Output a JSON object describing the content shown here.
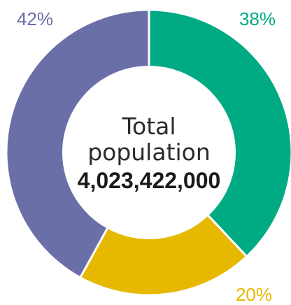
{
  "chart_data": {
    "type": "pie",
    "donut": true,
    "categories": [
      "",
      "",
      ""
    ],
    "values": [
      38,
      20,
      42
    ],
    "value_labels": [
      "38%",
      "20%",
      "42%"
    ],
    "colors": [
      "#00ab84",
      "#e6b800",
      "#6a6fa8"
    ],
    "center": {
      "line1": "Total",
      "line2": "population",
      "total": "4,023,422,000"
    },
    "legend": "none"
  }
}
